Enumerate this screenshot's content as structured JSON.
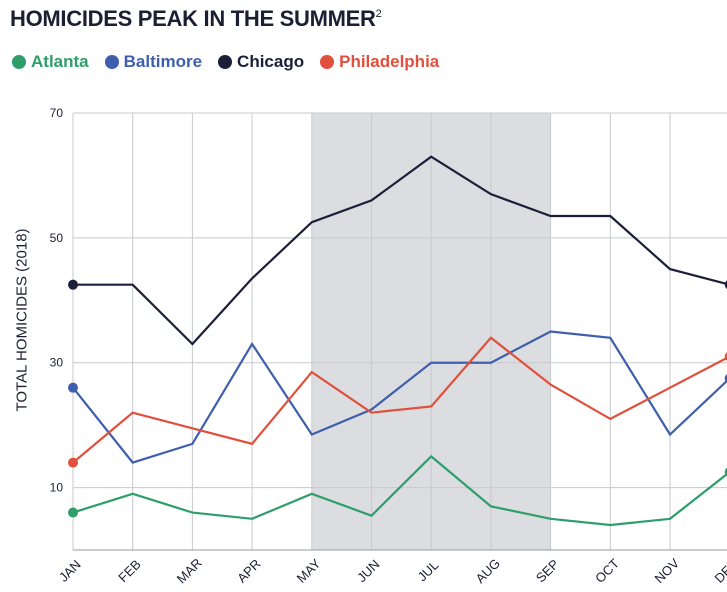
{
  "title": "HOMICIDES PEAK IN THE SUMMER",
  "title_sup": "2",
  "chart_data": {
    "type": "line",
    "categories": [
      "JAN",
      "FEB",
      "MAR",
      "APR",
      "MAY",
      "JUN",
      "JUL",
      "AUG",
      "SEP",
      "OCT",
      "NOV",
      "DEC"
    ],
    "ylabel": "TOTAL HOMICIDES (2018)",
    "ylim": [
      0,
      70
    ],
    "yticks": [
      10,
      30,
      50,
      70
    ],
    "highlight_range": [
      "MAY",
      "SEP"
    ],
    "grid": true,
    "legend_position": "top-left",
    "series": [
      {
        "name": "Atlanta",
        "color": "#2e9e6b",
        "values": [
          6,
          9,
          6,
          5,
          9,
          5.5,
          15,
          7,
          5,
          4,
          5,
          12.5
        ]
      },
      {
        "name": "Baltimore",
        "color": "#3f5fad",
        "values": [
          26,
          14,
          17,
          33,
          18.5,
          22.5,
          30,
          30,
          35,
          34,
          18.5,
          27.5
        ]
      },
      {
        "name": "Chicago",
        "color": "#1c1f3a",
        "values": [
          42.5,
          42.5,
          33,
          43.5,
          52.5,
          56,
          63,
          57,
          53.5,
          53.5,
          45,
          42.5
        ]
      },
      {
        "name": "Philadelphia",
        "color": "#e0503c",
        "values": [
          14,
          22,
          19.5,
          17,
          28.5,
          22,
          23,
          34,
          26.5,
          21,
          26,
          31
        ]
      }
    ]
  }
}
